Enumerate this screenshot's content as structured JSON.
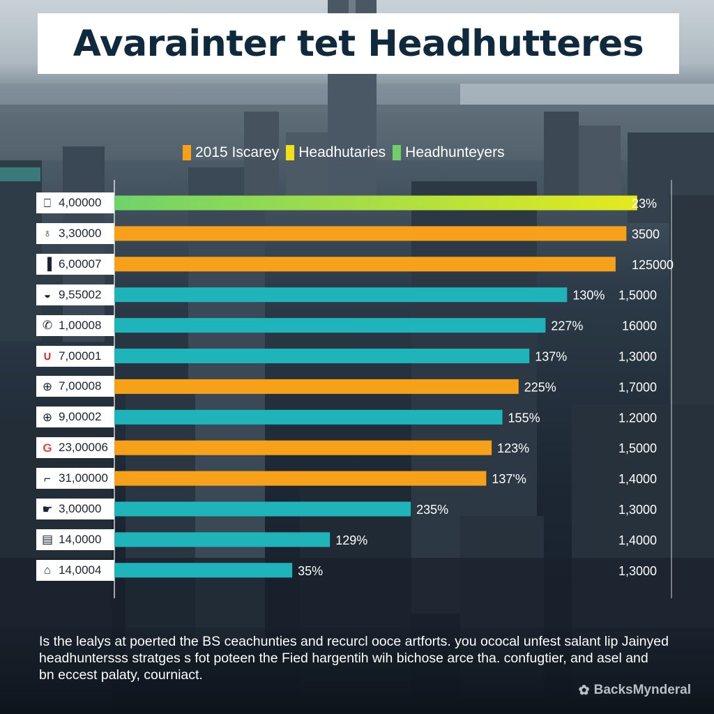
{
  "title": "Avarainter tet Headhutteres",
  "legend": [
    {
      "label": "2015 Iscarey",
      "color": "#f7a01a"
    },
    {
      "label": "Headhutaries",
      "color": "#f3e01c"
    },
    {
      "label": "Headhunteyers",
      "color": "#6fcf6a"
    }
  ],
  "caption": {
    "line1": "Is the lealys at poerted the BS ceachunties and recurcl ooce artforts. you ococal unfest salant lip Jainyed",
    "line2": "headhuntersss stratges s fot poteen the Fied hargentih wih bichose arce tha. confugtier, and asel and",
    "line3": "bn eccest palaty, courniact."
  },
  "watermark": "BacksMynderal",
  "colors": {
    "orange": "#f7a01a",
    "teal": "#1fb3ba",
    "green": "#6fd36a",
    "yellow": "#e4ea1c"
  },
  "chart_data": {
    "type": "bar",
    "orientation": "horizontal",
    "title": "Avarainter tet Headhutteres",
    "legend_position": "top",
    "xlim": [
      0,
      1
    ],
    "rows": [
      {
        "label": "4,00000",
        "icon": "box-icon",
        "value": 0.97,
        "color": "gradient",
        "bar_label": "23%",
        "right_label": ""
      },
      {
        "label": "3,30000",
        "icon": "tower-icon",
        "value": 0.95,
        "color": "orange",
        "bar_label": "3500",
        "right_label": ""
      },
      {
        "label": "6,00007",
        "icon": "bar-chart-icon",
        "value": 0.93,
        "color": "orange",
        "bar_label": "125000",
        "right_label": ""
      },
      {
        "label": "9,55002",
        "icon": "coins-icon",
        "value": 0.84,
        "color": "teal",
        "bar_label": "130%",
        "right_label": "1,5000"
      },
      {
        "label": "1,00008",
        "icon": "phone-icon",
        "value": 0.8,
        "color": "teal",
        "bar_label": "227%",
        "right_label": "16000"
      },
      {
        "label": "7,00001",
        "icon": "magnet-icon",
        "value": 0.77,
        "color": "teal",
        "bar_label": "137%",
        "right_label": "1,3000"
      },
      {
        "label": "7,00008",
        "icon": "globe-icon",
        "value": 0.75,
        "color": "orange",
        "bar_label": "225%",
        "right_label": "1,7000"
      },
      {
        "label": "9,00002",
        "icon": "world-icon",
        "value": 0.72,
        "color": "teal",
        "bar_label": "155%",
        "right_label": "1.2000"
      },
      {
        "label": "23,00006",
        "icon": "google-icon",
        "value": 0.7,
        "color": "orange",
        "bar_label": "123%",
        "right_label": "1,5000"
      },
      {
        "label": "31,00000",
        "icon": "pipe-icon",
        "value": 0.69,
        "color": "orange",
        "bar_label": "137'%",
        "right_label": "1,4000"
      },
      {
        "label": "3,00000",
        "icon": "hand-icon",
        "value": 0.55,
        "color": "teal",
        "bar_label": "235%",
        "right_label": "1,3000"
      },
      {
        "label": "14,0000",
        "icon": "ticket-icon",
        "value": 0.4,
        "color": "teal",
        "bar_label": "129%",
        "right_label": "1,4000"
      },
      {
        "label": "14,0004",
        "icon": "trash-icon",
        "value": 0.33,
        "color": "teal",
        "bar_label": "35%",
        "right_label": "1,3000"
      }
    ]
  }
}
